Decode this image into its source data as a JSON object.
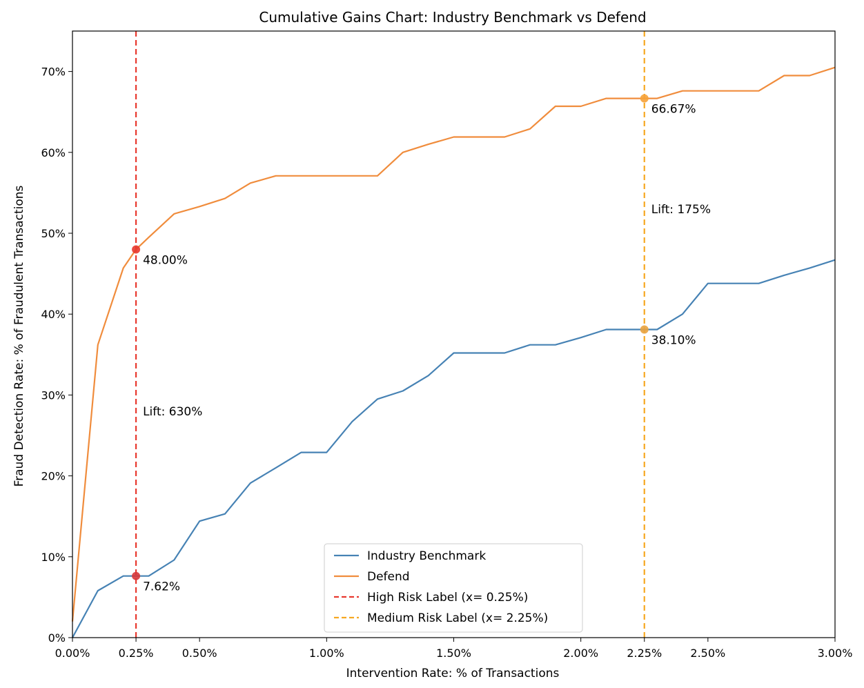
{
  "chart_data": {
    "type": "line",
    "title": "Cumulative Gains Chart: Industry Benchmark vs Defend",
    "xlabel": "Intervention Rate: % of Transactions",
    "ylabel": "Fraud Detection Rate: % of Fraudulent Transactions",
    "xlim": [
      0,
      3.0
    ],
    "ylim": [
      0,
      75
    ],
    "x_ticks": [
      {
        "value": 0.0,
        "label": "0.00%"
      },
      {
        "value": 0.25,
        "label": "0.25%"
      },
      {
        "value": 0.5,
        "label": "0.50%"
      },
      {
        "value": 1.0,
        "label": "1.00%"
      },
      {
        "value": 1.5,
        "label": "1.50%"
      },
      {
        "value": 2.0,
        "label": "2.00%"
      },
      {
        "value": 2.25,
        "label": "2.25%"
      },
      {
        "value": 2.5,
        "label": "2.50%"
      },
      {
        "value": 3.0,
        "label": "3.00%"
      }
    ],
    "y_ticks": [
      {
        "value": 0,
        "label": "0%"
      },
      {
        "value": 10,
        "label": "10%"
      },
      {
        "value": 20,
        "label": "20%"
      },
      {
        "value": 30,
        "label": "30%"
      },
      {
        "value": 40,
        "label": "40%"
      },
      {
        "value": 50,
        "label": "50%"
      },
      {
        "value": 60,
        "label": "60%"
      },
      {
        "value": 70,
        "label": "70%"
      }
    ],
    "series": [
      {
        "name": "Industry Benchmark",
        "color": "#4682b4",
        "points": [
          [
            0,
            0
          ],
          [
            0.1,
            5.8
          ],
          [
            0.2,
            7.62
          ],
          [
            0.3,
            7.62
          ],
          [
            0.4,
            9.6
          ],
          [
            0.5,
            14.4
          ],
          [
            0.6,
            15.3
          ],
          [
            0.7,
            19.1
          ],
          [
            0.8,
            21.0
          ],
          [
            0.9,
            22.9
          ],
          [
            1.0,
            22.9
          ],
          [
            1.1,
            26.7
          ],
          [
            1.2,
            29.5
          ],
          [
            1.3,
            30.5
          ],
          [
            1.4,
            32.4
          ],
          [
            1.5,
            35.2
          ],
          [
            1.6,
            35.2
          ],
          [
            1.7,
            35.2
          ],
          [
            1.8,
            36.2
          ],
          [
            1.9,
            36.2
          ],
          [
            2.0,
            37.1
          ],
          [
            2.1,
            38.1
          ],
          [
            2.2,
            38.1
          ],
          [
            2.3,
            38.1
          ],
          [
            2.4,
            40.0
          ],
          [
            2.5,
            43.8
          ],
          [
            2.6,
            43.8
          ],
          [
            2.7,
            43.8
          ],
          [
            2.8,
            44.8
          ],
          [
            2.9,
            45.7
          ],
          [
            3.0,
            46.7
          ]
        ]
      },
      {
        "name": "Defend",
        "color": "#f08c3c",
        "points": [
          [
            0,
            2.0
          ],
          [
            0.1,
            36.2
          ],
          [
            0.2,
            45.7
          ],
          [
            0.25,
            48.0
          ],
          [
            0.3,
            49.5
          ],
          [
            0.4,
            52.4
          ],
          [
            0.5,
            53.3
          ],
          [
            0.6,
            54.3
          ],
          [
            0.7,
            56.2
          ],
          [
            0.8,
            57.1
          ],
          [
            0.9,
            57.1
          ],
          [
            1.0,
            57.1
          ],
          [
            1.1,
            57.1
          ],
          [
            1.2,
            57.1
          ],
          [
            1.3,
            60.0
          ],
          [
            1.4,
            61.0
          ],
          [
            1.5,
            61.9
          ],
          [
            1.6,
            61.9
          ],
          [
            1.7,
            61.9
          ],
          [
            1.8,
            62.9
          ],
          [
            1.9,
            65.7
          ],
          [
            2.0,
            65.7
          ],
          [
            2.1,
            66.67
          ],
          [
            2.2,
            66.67
          ],
          [
            2.3,
            66.67
          ],
          [
            2.4,
            67.6
          ],
          [
            2.5,
            67.6
          ],
          [
            2.6,
            67.6
          ],
          [
            2.7,
            67.6
          ],
          [
            2.8,
            69.5
          ],
          [
            2.9,
            69.5
          ],
          [
            3.0,
            70.5
          ]
        ]
      }
    ],
    "vlines": [
      {
        "name": "High Risk Label (x= 0.25%)",
        "x": 0.25,
        "color": "#e8382e"
      },
      {
        "name": "Medium Risk Label (x= 2.25%)",
        "x": 2.25,
        "color": "#f6a821"
      }
    ],
    "markers": [
      {
        "x": 0.25,
        "y": 48.0,
        "label": "48.00%",
        "color": "#e8382e"
      },
      {
        "x": 0.25,
        "y": 7.62,
        "label": "7.62%",
        "color": "#d7373a"
      },
      {
        "x": 2.25,
        "y": 66.67,
        "label": "66.67%",
        "color": "#f6a238"
      },
      {
        "x": 2.25,
        "y": 38.1,
        "label": "38.10%",
        "color": "#e9a33f"
      }
    ],
    "annotations": [
      {
        "x": 0.25,
        "y": 28.0,
        "text": "Lift: 630%"
      },
      {
        "x": 2.25,
        "y": 53.0,
        "text": "Lift: 175%"
      }
    ],
    "legend": {
      "position": "bottom-center",
      "entries": [
        {
          "label": "Industry Benchmark",
          "color": "#4682b4",
          "style": "solid"
        },
        {
          "label": "Defend",
          "color": "#f08c3c",
          "style": "solid"
        },
        {
          "label": "High Risk Label (x= 0.25%)",
          "color": "#e8382e",
          "style": "dashed"
        },
        {
          "label": "Medium Risk Label (x= 2.25%)",
          "color": "#f6a821",
          "style": "dashed"
        }
      ]
    }
  }
}
